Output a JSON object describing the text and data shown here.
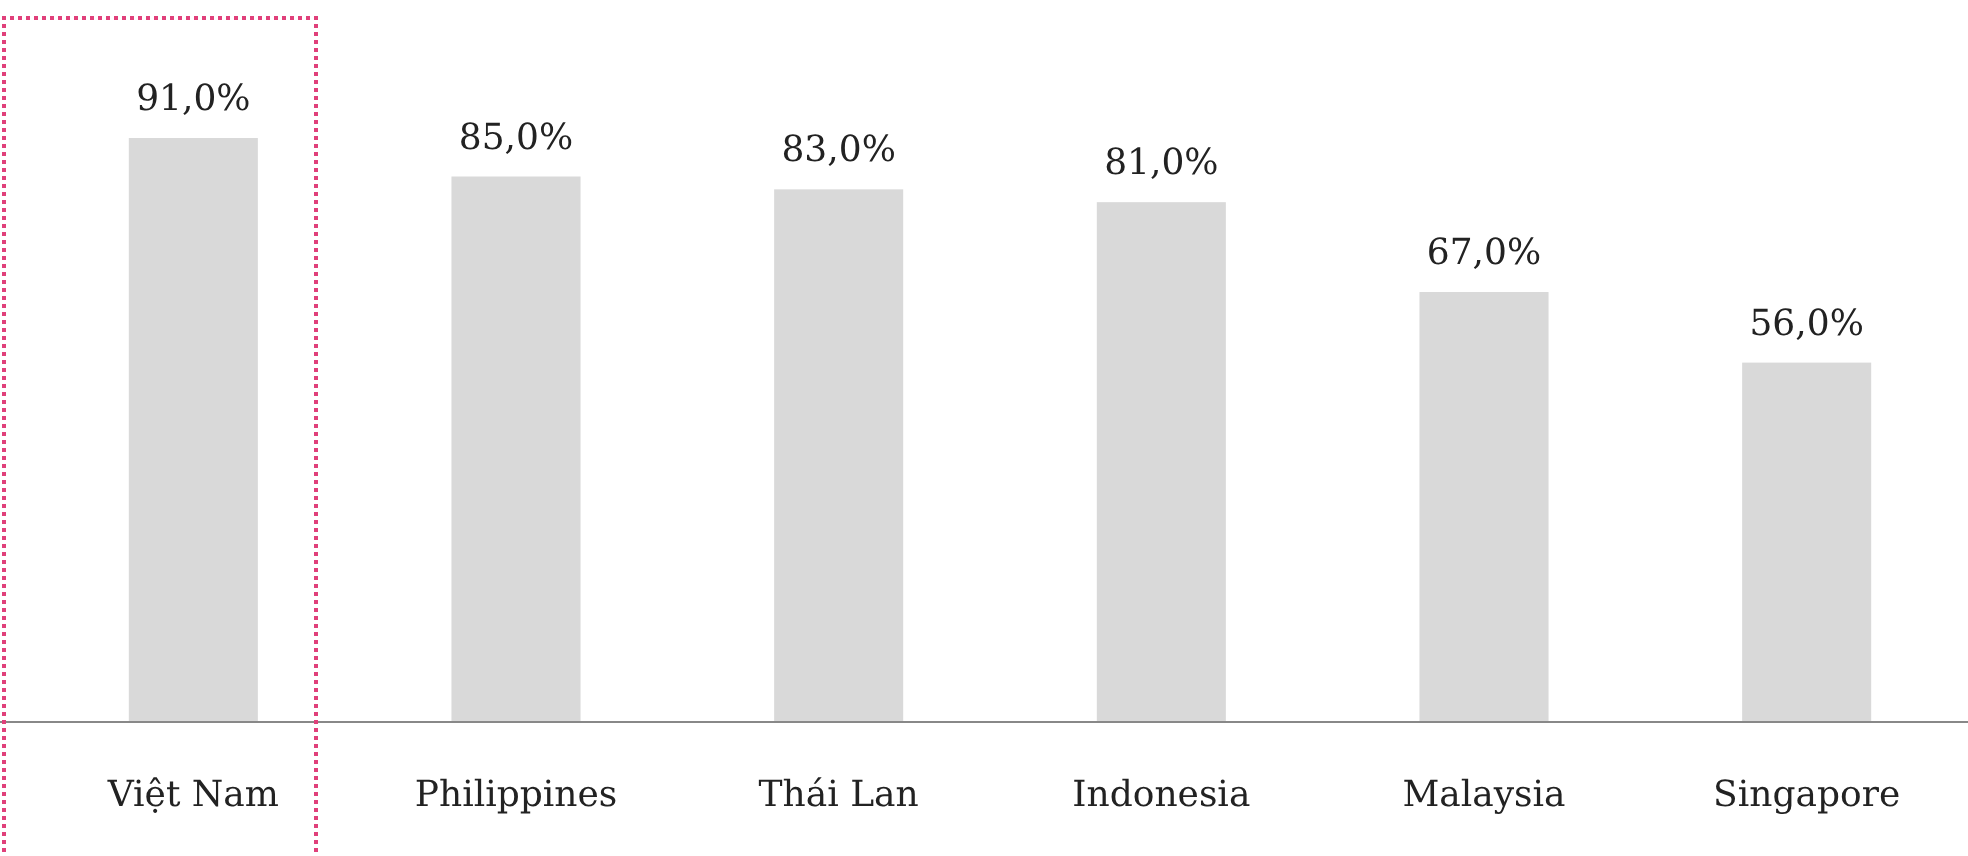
{
  "chart_data": {
    "type": "bar",
    "categories": [
      "Việt Nam",
      "Philippines",
      "Thái Lan",
      "Indonesia",
      "Malaysia",
      "Singapore"
    ],
    "values": [
      91,
      85,
      83,
      81,
      67,
      56
    ],
    "value_labels": [
      "91,0%",
      "85,0%",
      "83,0%",
      "81,0%",
      "67,0%",
      "56,0%"
    ],
    "color": "#d9d9d9",
    "tick_labels": "x"
  }
}
